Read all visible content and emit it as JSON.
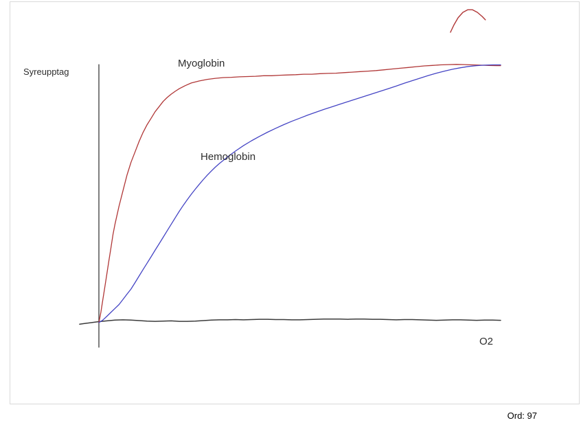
{
  "statusbar": {
    "word_count": "Ord: 97"
  },
  "colors": {
    "canvas_border": "#d9d9d9",
    "axis": "#3a3a3a",
    "myoglobin": "#b03636",
    "hemoglobin": "#4444c4"
  },
  "chart_data": {
    "type": "line",
    "title": "",
    "ylabel": "Syreupptag",
    "xlabel": "O2",
    "x_range": [
      0,
      100
    ],
    "y_range": [
      0,
      100
    ],
    "grid": false,
    "legend": "inline-labels",
    "style": "hand-drawn oxygen binding curves",
    "series": [
      {
        "name": "Myoglobin",
        "color": "#b03636",
        "shape": "hyperbolic saturation curve",
        "points": [
          [
            0,
            0
          ],
          [
            0.5,
            4
          ],
          [
            1,
            9
          ],
          [
            1.5,
            14
          ],
          [
            2,
            19
          ],
          [
            2.5,
            24
          ],
          [
            3,
            29
          ],
          [
            3.5,
            34
          ],
          [
            4,
            38
          ],
          [
            5,
            45
          ],
          [
            6,
            51
          ],
          [
            7,
            57
          ],
          [
            8,
            62
          ],
          [
            9,
            66
          ],
          [
            10,
            70
          ],
          [
            11,
            73.5
          ],
          [
            12,
            76.5
          ],
          [
            13,
            79
          ],
          [
            14,
            81.5
          ],
          [
            15,
            83.5
          ],
          [
            16,
            85.5
          ],
          [
            17,
            87
          ],
          [
            18,
            88.3
          ],
          [
            19,
            89.4
          ],
          [
            20,
            90.4
          ],
          [
            21.5,
            91.6
          ],
          [
            23,
            92.6
          ],
          [
            25,
            93.4
          ],
          [
            27,
            94
          ],
          [
            29,
            94.4
          ],
          [
            31,
            94.7
          ],
          [
            33,
            94.8
          ],
          [
            35,
            95
          ],
          [
            37,
            95.1
          ],
          [
            39,
            95.2
          ],
          [
            41,
            95.4
          ],
          [
            43,
            95.4
          ],
          [
            45,
            95.6
          ],
          [
            47,
            95.7
          ],
          [
            49,
            95.8
          ],
          [
            51,
            96
          ],
          [
            53,
            96
          ],
          [
            55,
            96.2
          ],
          [
            57,
            96.3
          ],
          [
            59,
            96.4
          ],
          [
            61,
            96.6
          ],
          [
            63,
            96.8
          ],
          [
            65,
            97
          ],
          [
            67,
            97.2
          ],
          [
            69,
            97.4
          ],
          [
            71,
            97.7
          ],
          [
            73,
            98
          ],
          [
            75,
            98.3
          ],
          [
            77,
            98.6
          ],
          [
            79,
            98.9
          ],
          [
            81,
            99.2
          ],
          [
            83,
            99.4
          ],
          [
            85,
            99.6
          ],
          [
            87,
            99.7
          ],
          [
            89,
            99.8
          ],
          [
            91,
            99.7
          ],
          [
            93,
            99.6
          ],
          [
            95,
            99.5
          ],
          [
            97,
            99.4
          ],
          [
            99,
            99.3
          ],
          [
            100,
            99.3
          ]
        ]
      },
      {
        "name": "Hemoglobin",
        "color": "#4444c4",
        "shape": "sigmoidal saturation curve",
        "points": [
          [
            0,
            0
          ],
          [
            1,
            1
          ],
          [
            2,
            2.5
          ],
          [
            3,
            4
          ],
          [
            4,
            5.5
          ],
          [
            5,
            7
          ],
          [
            6,
            9
          ],
          [
            7,
            11
          ],
          [
            8,
            13
          ],
          [
            9,
            15.5
          ],
          [
            10,
            18
          ],
          [
            11,
            20.5
          ],
          [
            12,
            23
          ],
          [
            13,
            25.5
          ],
          [
            14,
            28
          ],
          [
            15,
            30.5
          ],
          [
            16,
            33
          ],
          [
            17,
            35.5
          ],
          [
            18,
            38
          ],
          [
            19,
            40.5
          ],
          [
            20,
            43
          ],
          [
            21,
            45.3
          ],
          [
            22,
            47.5
          ],
          [
            23,
            49.6
          ],
          [
            24,
            51.6
          ],
          [
            25,
            53.5
          ],
          [
            26,
            55.3
          ],
          [
            27,
            57
          ],
          [
            28,
            58.6
          ],
          [
            29,
            60.1
          ],
          [
            30,
            61.5
          ],
          [
            32,
            64
          ],
          [
            34,
            66.3
          ],
          [
            36,
            68.4
          ],
          [
            38,
            70.3
          ],
          [
            40,
            72
          ],
          [
            42,
            73.6
          ],
          [
            44,
            75.1
          ],
          [
            46,
            76.5
          ],
          [
            48,
            77.8
          ],
          [
            50,
            79
          ],
          [
            52,
            80.2
          ],
          [
            54,
            81.3
          ],
          [
            56,
            82.4
          ],
          [
            58,
            83.4
          ],
          [
            60,
            84.4
          ],
          [
            62,
            85.4
          ],
          [
            64,
            86.4
          ],
          [
            66,
            87.4
          ],
          [
            68,
            88.4
          ],
          [
            70,
            89.4
          ],
          [
            72,
            90.4
          ],
          [
            74,
            91.4
          ],
          [
            76,
            92.5
          ],
          [
            78,
            93.5
          ],
          [
            80,
            94.5
          ],
          [
            82,
            95.5
          ],
          [
            84,
            96.4
          ],
          [
            86,
            97.2
          ],
          [
            88,
            97.9
          ],
          [
            90,
            98.5
          ],
          [
            92,
            99
          ],
          [
            94,
            99.3
          ],
          [
            96,
            99.5
          ],
          [
            98,
            99.6
          ],
          [
            100,
            99.6
          ]
        ]
      }
    ],
    "axes": {
      "color": "#3a3a3a",
      "y_axis_points": [
        [
          0,
          -9.5
        ],
        [
          0,
          99.7
        ]
      ],
      "x_axis_points": [
        [
          -4.8,
          -0.6
        ],
        [
          -3,
          -0.2
        ],
        [
          -1,
          0.2
        ],
        [
          0,
          0.4
        ],
        [
          2,
          0.7
        ],
        [
          4,
          1
        ],
        [
          6,
          1.1
        ],
        [
          8,
          1
        ],
        [
          10,
          0.8
        ],
        [
          12,
          0.6
        ],
        [
          14,
          0.5
        ],
        [
          16,
          0.6
        ],
        [
          18,
          0.7
        ],
        [
          20,
          0.5
        ],
        [
          22,
          0.5
        ],
        [
          24,
          0.6
        ],
        [
          26,
          0.8
        ],
        [
          28,
          1
        ],
        [
          30,
          1.1
        ],
        [
          32,
          1.1
        ],
        [
          34,
          1.2
        ],
        [
          36,
          1.1
        ],
        [
          38,
          1.2
        ],
        [
          40,
          1.3
        ],
        [
          42,
          1.3
        ],
        [
          44,
          1.2
        ],
        [
          46,
          1.2
        ],
        [
          48,
          1.1
        ],
        [
          50,
          1.1
        ],
        [
          52,
          1.2
        ],
        [
          54,
          1.3
        ],
        [
          56,
          1.4
        ],
        [
          58,
          1.4
        ],
        [
          60,
          1.4
        ],
        [
          62,
          1.3
        ],
        [
          64,
          1.4
        ],
        [
          66,
          1.4
        ],
        [
          68,
          1.3
        ],
        [
          70,
          1.3
        ],
        [
          72,
          1.2
        ],
        [
          74,
          1.1
        ],
        [
          76,
          1.2
        ],
        [
          78,
          1.2
        ],
        [
          80,
          1.1
        ],
        [
          82,
          1
        ],
        [
          84,
          0.9
        ],
        [
          86,
          1
        ],
        [
          88,
          1.1
        ],
        [
          90,
          1.1
        ],
        [
          92,
          1
        ],
        [
          94,
          0.9
        ],
        [
          96,
          1
        ],
        [
          98,
          1
        ],
        [
          100,
          0.9
        ]
      ]
    },
    "stray_mark": {
      "description": "small red pen arc at top right of canvas",
      "color": "#b03636",
      "points": [
        [
          87.5,
          112.2
        ],
        [
          88.4,
          115.1
        ],
        [
          89.4,
          117.8
        ],
        [
          90.6,
          119.9
        ],
        [
          91.8,
          120.9
        ],
        [
          93,
          120.9
        ],
        [
          94.2,
          119.9
        ],
        [
          95.4,
          118.3
        ],
        [
          96.2,
          117
        ]
      ]
    }
  }
}
